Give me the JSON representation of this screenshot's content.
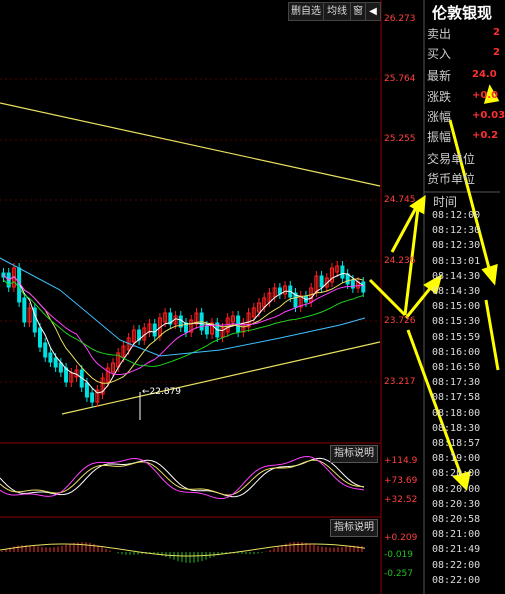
{
  "toolbar": {
    "remove_self_select": "删自选",
    "ma_line": "均线",
    "window": "窗",
    "back_icon": "◀"
  },
  "axis": {
    "levels": [
      "26.273",
      "25.764",
      "25.255",
      "24.745",
      "24.236",
      "23.726",
      "23.217"
    ]
  },
  "chart": {
    "low_label": "←22.879"
  },
  "indicator1": {
    "explain": "指标说明",
    "levels": [
      "+114.9",
      "+73.69",
      "+32.52"
    ]
  },
  "indicator2": {
    "explain": "指标说明",
    "levels": [
      "+0.209",
      "-0.019",
      "-0.257"
    ]
  },
  "quote": {
    "title": "伦敦银现",
    "rows": [
      {
        "label": "卖出",
        "value": "2"
      },
      {
        "label": "买入",
        "value": "2"
      },
      {
        "label": "最新",
        "value": "24.0"
      },
      {
        "label": "涨跌",
        "value": "+0.0"
      },
      {
        "label": "涨幅",
        "value": "+0.03"
      },
      {
        "label": "振幅",
        "value": "+0.2"
      },
      {
        "label": "交易单位",
        "value": ""
      },
      {
        "label": "货币单位",
        "value": ""
      }
    ]
  },
  "ticks": {
    "header": "时间",
    "times": [
      "08:12:00",
      "08:12:30",
      "08:12:30",
      "08:13:01",
      "08:14:30",
      "08:14:30",
      "08:15:00",
      "08:15:30",
      "08:15:59",
      "08:16:00",
      "08:16:50",
      "08:17:30",
      "08:17:58",
      "08:18:00",
      "08:18:30",
      "08:18:57",
      "08:19:00",
      "08:20:00",
      "08:20:00",
      "08:20:30",
      "08:20:58",
      "08:21:00",
      "08:21:49",
      "08:22:00",
      "08:22:00"
    ]
  },
  "colors": {
    "up_candle": "#ff2020",
    "down_candle": "#00e0e0",
    "trendline": "#e8e060",
    "arrow": "#ffff00"
  }
}
